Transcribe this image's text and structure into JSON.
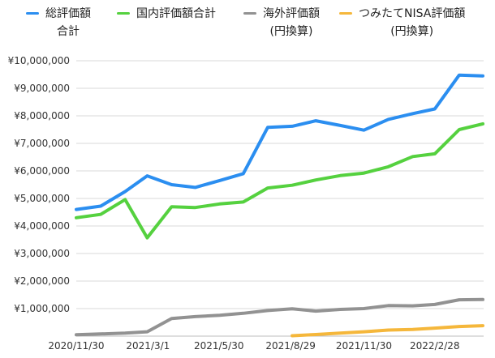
{
  "chart_data": {
    "type": "line",
    "title": "",
    "xlabel": "",
    "ylabel": "",
    "ylim": [
      0,
      10000000
    ],
    "y_ticks": [
      "¥10,000,000",
      "¥9,000,000",
      "¥8,000,000",
      "¥7,000,000",
      "¥6,000,000",
      "¥5,000,000",
      "¥4,000,000",
      "¥3,000,000",
      "¥2,000,000",
      "¥1,000,000"
    ],
    "x_tick_labels": [
      "2020/11/30",
      "2021/3/1",
      "2021/5/30",
      "2021/8/29",
      "2021/11/30",
      "2022/2/28"
    ],
    "grid": true,
    "legend_position": "top",
    "series": [
      {
        "name_lines": [
          "総評価額",
          "合計"
        ],
        "color": "#2b8ef0",
        "x": [
          "2020/11/30",
          "2020/12/31",
          "2021/1/31",
          "2021/2/28",
          "2021/3/31",
          "2021/4/30",
          "2021/5/31",
          "2021/6/30",
          "2021/7/31",
          "2021/8/31",
          "2021/9/30",
          "2021/10/31",
          "2021/11/30",
          "2021/12/31",
          "2022/1/31",
          "2022/2/28",
          "2022/3/31",
          "2022/4/30"
        ],
        "values": [
          4600000,
          4720000,
          5250000,
          5820000,
          5500000,
          5400000,
          5650000,
          5900000,
          7580000,
          7620000,
          7820000,
          7650000,
          7480000,
          7870000,
          8080000,
          8250000,
          9480000,
          9450000
        ]
      },
      {
        "name_lines": [
          "国内評価額合計"
        ],
        "color": "#55d13f",
        "x": [
          "2020/11/30",
          "2020/12/31",
          "2021/1/31",
          "2021/2/28",
          "2021/3/31",
          "2021/4/30",
          "2021/5/31",
          "2021/6/30",
          "2021/7/31",
          "2021/8/31",
          "2021/9/30",
          "2021/10/31",
          "2021/11/30",
          "2021/12/31",
          "2022/1/31",
          "2022/2/28",
          "2022/3/31",
          "2022/4/30"
        ],
        "values": [
          4300000,
          4420000,
          4960000,
          3570000,
          4700000,
          4670000,
          4800000,
          4870000,
          5380000,
          5480000,
          5670000,
          5830000,
          5920000,
          6150000,
          6520000,
          6620000,
          7500000,
          7710000
        ]
      },
      {
        "name_lines": [
          "海外評価額",
          "(円換算)"
        ],
        "color": "#929292",
        "x": [
          "2020/11/30",
          "2020/12/31",
          "2021/1/31",
          "2021/2/28",
          "2021/3/31",
          "2021/4/30",
          "2021/5/31",
          "2021/6/30",
          "2021/7/31",
          "2021/8/31",
          "2021/9/30",
          "2021/10/31",
          "2021/11/30",
          "2021/12/31",
          "2022/1/31",
          "2022/2/28",
          "2022/3/31",
          "2022/4/30"
        ],
        "values": [
          50000,
          80000,
          110000,
          160000,
          640000,
          710000,
          760000,
          830000,
          930000,
          990000,
          910000,
          970000,
          1000000,
          1110000,
          1100000,
          1150000,
          1320000,
          1330000
        ]
      },
      {
        "name_lines": [
          "つみたてNISA評価額",
          "(円換算)"
        ],
        "color": "#f5b73b",
        "x": [
          "2021/8/31",
          "2021/9/30",
          "2021/10/31",
          "2021/11/30",
          "2021/12/31",
          "2022/1/31",
          "2022/2/28",
          "2022/3/31",
          "2022/4/30"
        ],
        "values": [
          15000,
          60000,
          110000,
          160000,
          220000,
          240000,
          290000,
          350000,
          380000
        ]
      }
    ]
  }
}
